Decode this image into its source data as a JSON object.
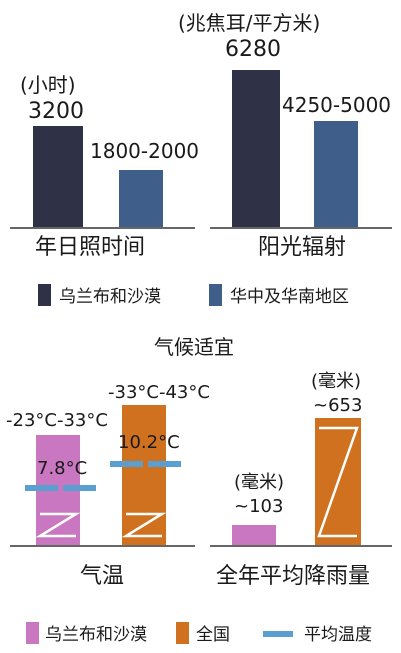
{
  "chart_data": [
    {
      "type": "bar",
      "title": "年日照时间",
      "unit": "(小时)",
      "series": [
        {
          "name": "乌兰布和沙漠",
          "value": 3200,
          "label": "3200",
          "color": "#2f3146"
        },
        {
          "name": "华中及华南地区",
          "value_range": [
            1800,
            2000
          ],
          "label": "1800-2000",
          "color": "#3f5f8a"
        }
      ]
    },
    {
      "type": "bar",
      "title": "阳光辐射",
      "unit": "(兆焦耳/平方米)",
      "series": [
        {
          "name": "乌兰布和沙漠",
          "value": 6280,
          "label": "6280",
          "color": "#2f3146"
        },
        {
          "name": "华中及华南地区",
          "value_range": [
            4250,
            5000
          ],
          "label": "4250-5000",
          "color": "#3f5f8a"
        }
      ]
    },
    {
      "type": "bar",
      "title": "气温",
      "series": [
        {
          "name": "乌兰布和沙漠",
          "range": [
            -23,
            33
          ],
          "label": "-23°C-33°C",
          "mean": 7.8,
          "mean_label": "7.8°C",
          "color": "#c877c0"
        },
        {
          "name": "全国",
          "range": [
            -33,
            43
          ],
          "label": "-33°C-43°C",
          "mean": 10.2,
          "mean_label": "10.2°C",
          "color": "#d0711f"
        }
      ]
    },
    {
      "type": "bar",
      "title": "全年平均降雨量",
      "unit": "(毫米)",
      "series": [
        {
          "name": "乌兰布和沙漠",
          "value": 103,
          "label": "~103",
          "unit": "(毫米)",
          "color": "#c877c0"
        },
        {
          "name": "全国",
          "value": 653,
          "label": "~653",
          "unit": "(毫米)",
          "color": "#d0711f"
        }
      ]
    }
  ],
  "legend_top": [
    {
      "label": "乌兰布和沙漠",
      "color": "#2f3146"
    },
    {
      "label": "华中及华南地区",
      "color": "#3f5f8a"
    }
  ],
  "section_title": "气候适宜",
  "legend_bottom": [
    {
      "label": "乌兰布和沙漠",
      "color": "#c877c0",
      "shape": "square"
    },
    {
      "label": "全国",
      "color": "#d0711f",
      "shape": "square"
    },
    {
      "label": "平均温度",
      "color": "#5b9fd0",
      "shape": "line"
    }
  ]
}
